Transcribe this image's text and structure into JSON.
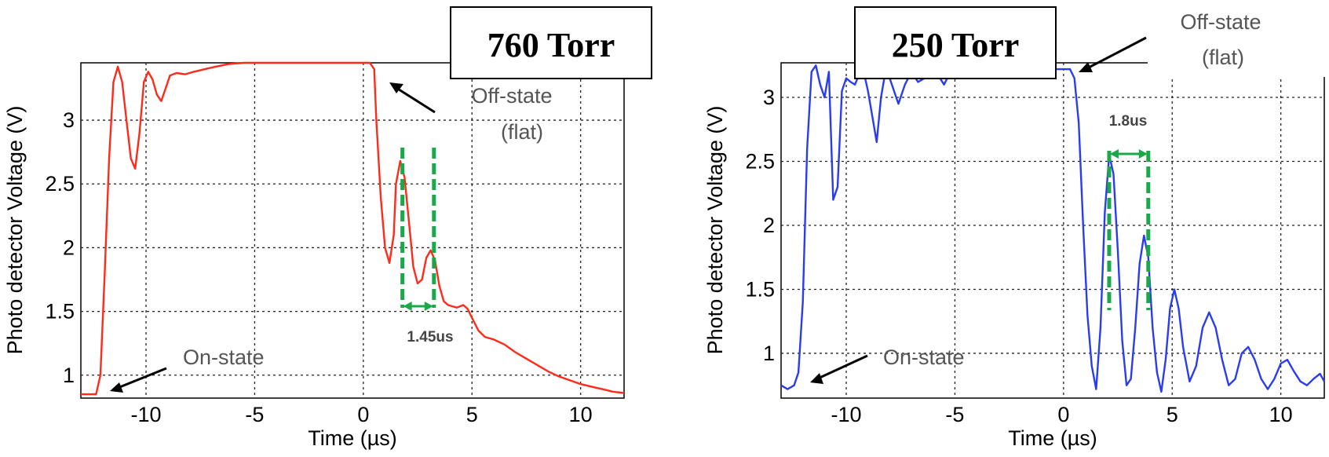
{
  "chart_data": [
    {
      "type": "line",
      "title": "760 Torr",
      "xlabel": "Time (µs)",
      "ylabel": "Photo detector Voltage (V)",
      "xlim": [
        -13,
        12
      ],
      "ylim": [
        0.82,
        3.45
      ],
      "xticks": [
        "-10",
        "-5",
        "0",
        "5",
        "10"
      ],
      "xtick_values": [
        -10,
        -5,
        0,
        5,
        10
      ],
      "yticks": [
        "1",
        "1.5",
        "2",
        "2.5",
        "3"
      ],
      "ytick_values": [
        1,
        1.5,
        2,
        2.5,
        3
      ],
      "grid": true,
      "color": "#ff2a1a",
      "series": [
        {
          "x": [
            -13,
            -12.3,
            -12.1,
            -11.9,
            -11.7,
            -11.5,
            -11.3,
            -11.1,
            -10.9,
            -10.7,
            -10.5,
            -10.3,
            -10.1,
            -9.9,
            -9.7,
            -9.5,
            -9.3,
            -9.1,
            -8.9,
            -8.6,
            -8.2,
            -7.8,
            -7.3,
            -6.8,
            -6.2,
            -5.5,
            -4.5,
            -3.5,
            -2.5,
            -1.5,
            -0.5,
            0,
            0.3,
            0.5,
            0.6,
            0.8,
            1.0,
            1.2,
            1.4,
            1.5,
            1.7,
            1.9,
            2.1,
            2.3,
            2.5,
            2.7,
            2.9,
            3.1,
            3.3,
            3.5,
            3.7,
            3.9,
            4.1,
            4.3,
            4.6,
            4.8,
            5.0,
            5.3,
            5.6,
            6.0,
            6.5,
            7.0,
            7.5,
            8.0,
            8.5,
            9.0,
            9.5,
            10.0,
            10.5,
            11.0,
            11.5,
            12
          ],
          "y": [
            0.85,
            0.85,
            1.0,
            1.8,
            2.7,
            3.3,
            3.42,
            3.3,
            3.0,
            2.7,
            2.62,
            2.9,
            3.3,
            3.38,
            3.32,
            3.2,
            3.15,
            3.25,
            3.35,
            3.37,
            3.36,
            3.38,
            3.4,
            3.42,
            3.44,
            3.45,
            3.45,
            3.45,
            3.45,
            3.45,
            3.45,
            3.45,
            3.45,
            3.4,
            3.0,
            2.4,
            2.0,
            1.88,
            2.1,
            2.5,
            2.68,
            2.55,
            2.2,
            1.85,
            1.72,
            1.75,
            1.92,
            1.98,
            1.9,
            1.7,
            1.58,
            1.55,
            1.54,
            1.53,
            1.55,
            1.52,
            1.45,
            1.35,
            1.3,
            1.28,
            1.24,
            1.18,
            1.13,
            1.08,
            1.03,
            0.99,
            0.96,
            0.93,
            0.91,
            0.89,
            0.87,
            0.86
          ]
        }
      ],
      "annotations": {
        "off_state": [
          "Off-state",
          "(flat)"
        ],
        "on_state": "On-state",
        "period": "1.45us",
        "period_marks_x": [
          1.8,
          3.25
        ]
      }
    },
    {
      "type": "line",
      "title": "250 Torr",
      "xlabel": "Time (µs)",
      "ylabel": "Photo detector Voltage (V)",
      "xlim": [
        -13,
        12
      ],
      "ylim": [
        0.65,
        3.27
      ],
      "xticks": [
        "-10",
        "-5",
        "0",
        "5",
        "10"
      ],
      "xtick_values": [
        -10,
        -5,
        0,
        5,
        10
      ],
      "yticks": [
        "1",
        "1.5",
        "2",
        "2.5",
        "3"
      ],
      "ytick_values": [
        1,
        1.5,
        2,
        2.5,
        3
      ],
      "grid": true,
      "color": "#2a3cf0",
      "series": [
        {
          "x": [
            -13,
            -12.7,
            -12.4,
            -12.2,
            -12.0,
            -11.8,
            -11.6,
            -11.4,
            -11.2,
            -11.0,
            -10.8,
            -10.6,
            -10.4,
            -10.2,
            -10.0,
            -9.8,
            -9.6,
            -9.4,
            -9.2,
            -9.0,
            -8.8,
            -8.6,
            -8.4,
            -8.2,
            -8.0,
            -7.8,
            -7.6,
            -7.3,
            -7.0,
            -6.7,
            -6.4,
            -6.1,
            -5.8,
            -5.5,
            -5.2,
            -4.9,
            -4.6,
            -4.3,
            -4.0,
            -3.5,
            -3.0,
            -2.5,
            -2.0,
            -1.5,
            -1.0,
            -0.5,
            0,
            0.3,
            0.5,
            0.7,
            0.9,
            1.1,
            1.3,
            1.5,
            1.7,
            1.9,
            2.1,
            2.3,
            2.5,
            2.7,
            2.9,
            3.1,
            3.3,
            3.5,
            3.7,
            3.9,
            4.1,
            4.3,
            4.5,
            4.7,
            4.9,
            5.1,
            5.3,
            5.5,
            5.8,
            6.1,
            6.4,
            6.7,
            7.0,
            7.3,
            7.6,
            7.9,
            8.2,
            8.5,
            8.8,
            9.1,
            9.4,
            9.7,
            10.0,
            10.3,
            10.6,
            10.9,
            11.2,
            11.5,
            11.8,
            12
          ],
          "y": [
            0.75,
            0.72,
            0.75,
            0.85,
            1.4,
            2.6,
            3.2,
            3.25,
            3.1,
            3.0,
            3.2,
            2.2,
            2.3,
            3.05,
            3.15,
            3.12,
            3.1,
            3.18,
            3.2,
            3.05,
            2.85,
            2.65,
            3.0,
            3.2,
            3.15,
            3.05,
            2.95,
            3.1,
            3.2,
            3.12,
            3.15,
            3.2,
            3.18,
            3.1,
            3.2,
            3.15,
            3.18,
            3.2,
            3.15,
            3.2,
            3.18,
            3.2,
            3.22,
            3.2,
            3.22,
            3.22,
            3.22,
            3.22,
            3.15,
            2.8,
            2.0,
            1.3,
            0.9,
            0.72,
            1.2,
            2.1,
            2.55,
            2.4,
            1.8,
            1.1,
            0.75,
            0.8,
            1.2,
            1.7,
            1.92,
            1.75,
            1.2,
            0.85,
            0.7,
            0.95,
            1.35,
            1.5,
            1.35,
            1.05,
            0.78,
            0.9,
            1.2,
            1.32,
            1.2,
            0.95,
            0.75,
            0.8,
            1.0,
            1.05,
            0.95,
            0.8,
            0.72,
            0.8,
            0.92,
            0.95,
            0.86,
            0.78,
            0.75,
            0.8,
            0.84,
            0.78
          ]
        }
      ],
      "annotations": {
        "off_state": [
          "Off-state",
          "(flat)"
        ],
        "on_state": "On-state",
        "period": "1.8us",
        "period_marks_x": [
          2.1,
          3.9
        ]
      }
    }
  ]
}
